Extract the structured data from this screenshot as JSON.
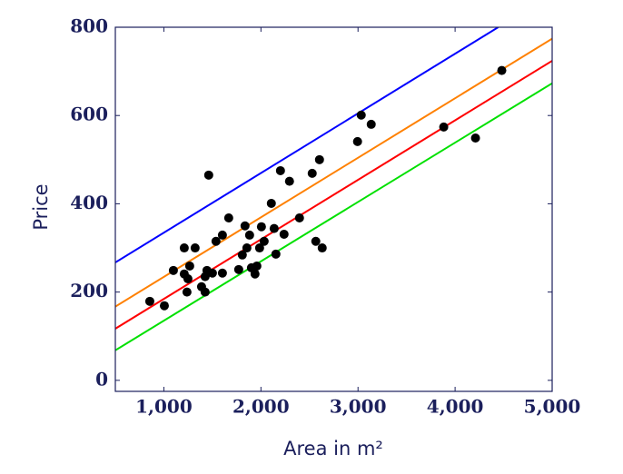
{
  "chart_data": {
    "type": "scatter",
    "xlabel": "Area in m²",
    "ylabel": "Price",
    "xlim": [
      500,
      5000
    ],
    "ylim": [
      -25,
      800
    ],
    "xticks": [
      {
        "value": 1000,
        "label": "1,000"
      },
      {
        "value": 2000,
        "label": "2,000"
      },
      {
        "value": 3000,
        "label": "3,000"
      },
      {
        "value": 4000,
        "label": "4,000"
      },
      {
        "value": 5000,
        "label": "5,000"
      }
    ],
    "yticks": [
      0,
      200,
      400,
      600,
      800
    ],
    "points": {
      "color": "#000000",
      "x": [
        855,
        1005,
        1098,
        1210,
        1210,
        1248,
        1266,
        1238,
        1322,
        1388,
        1425,
        1425,
        1444,
        1462,
        1500,
        1537,
        1603,
        1603,
        1668,
        1771,
        1808,
        1836,
        1855,
        1883,
        1902,
        1939,
        1958,
        1986,
        2005,
        2033,
        2107,
        2136,
        2154,
        2201,
        2238,
        2294,
        2397,
        2528,
        2565,
        2603,
        2631,
        2995,
        3033,
        3136,
        3883,
        4210,
        4481
      ],
      "y": [
        179,
        169,
        249,
        300,
        241,
        230,
        259,
        200,
        300,
        212,
        200,
        235,
        249,
        465,
        243,
        315,
        329,
        243,
        368,
        251,
        284,
        350,
        300,
        329,
        255,
        241,
        259,
        300,
        348,
        315,
        401,
        344,
        286,
        475,
        331,
        451,
        368,
        469,
        315,
        500,
        300,
        541,
        601,
        580,
        574,
        549,
        702
      ]
    },
    "lines": [
      {
        "color": "#0000ff",
        "x": [
          500,
          4444
        ],
        "y": [
          267,
          800
        ]
      },
      {
        "color": "#ff8000",
        "x": [
          500,
          5000
        ],
        "y": [
          167,
          774
        ]
      },
      {
        "color": "#ff0000",
        "x": [
          500,
          5000
        ],
        "y": [
          117,
          724
        ]
      },
      {
        "color": "#00e000",
        "x": [
          500,
          5000
        ],
        "y": [
          68,
          673
        ]
      }
    ]
  }
}
